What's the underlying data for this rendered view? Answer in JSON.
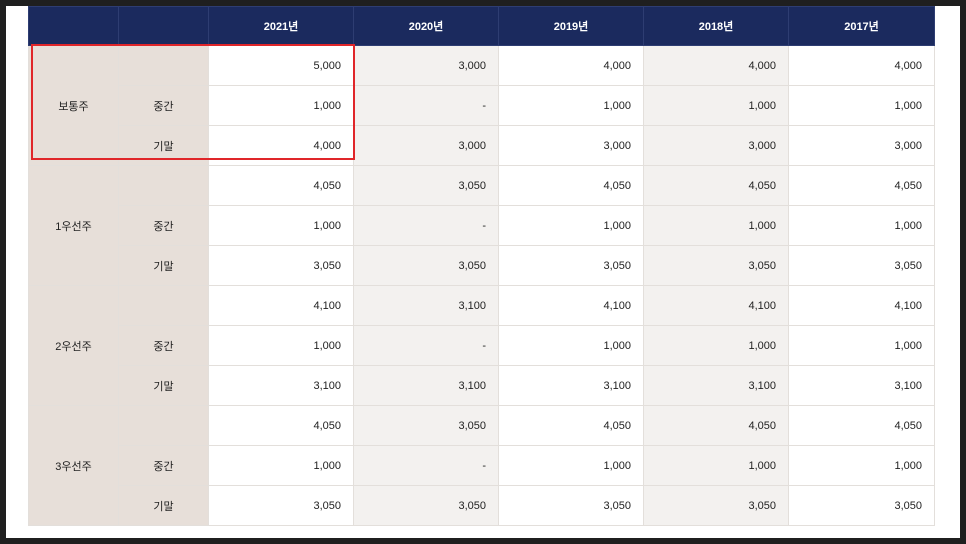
{
  "header": {
    "empty1": "",
    "empty2": "",
    "years": [
      "2021년",
      "2020년",
      "2019년",
      "2018년",
      "2017년"
    ]
  },
  "groups": [
    {
      "name": "보통주",
      "rows": [
        {
          "sub": "",
          "values": [
            "5,000",
            "3,000",
            "4,000",
            "4,000",
            "4,000"
          ]
        },
        {
          "sub": "중간",
          "values": [
            "1,000",
            "-",
            "1,000",
            "1,000",
            "1,000"
          ]
        },
        {
          "sub": "기말",
          "values": [
            "4,000",
            "3,000",
            "3,000",
            "3,000",
            "3,000"
          ]
        }
      ]
    },
    {
      "name": "1우선주",
      "rows": [
        {
          "sub": "",
          "values": [
            "4,050",
            "3,050",
            "4,050",
            "4,050",
            "4,050"
          ]
        },
        {
          "sub": "중간",
          "values": [
            "1,000",
            "-",
            "1,000",
            "1,000",
            "1,000"
          ]
        },
        {
          "sub": "기말",
          "values": [
            "3,050",
            "3,050",
            "3,050",
            "3,050",
            "3,050"
          ]
        }
      ]
    },
    {
      "name": "2우선주",
      "rows": [
        {
          "sub": "",
          "values": [
            "4,100",
            "3,100",
            "4,100",
            "4,100",
            "4,100"
          ]
        },
        {
          "sub": "중간",
          "values": [
            "1,000",
            "-",
            "1,000",
            "1,000",
            "1,000"
          ]
        },
        {
          "sub": "기말",
          "values": [
            "3,100",
            "3,100",
            "3,100",
            "3,100",
            "3,100"
          ]
        }
      ]
    },
    {
      "name": "3우선주",
      "rows": [
        {
          "sub": "",
          "values": [
            "4,050",
            "3,050",
            "4,050",
            "4,050",
            "4,050"
          ]
        },
        {
          "sub": "중간",
          "values": [
            "1,000",
            "-",
            "1,000",
            "1,000",
            "1,000"
          ]
        },
        {
          "sub": "기말",
          "values": [
            "3,050",
            "3,050",
            "3,050",
            "3,050",
            "3,050"
          ]
        }
      ]
    }
  ],
  "highlight_color": "#e0262a",
  "header_color": "#1b2a5e"
}
